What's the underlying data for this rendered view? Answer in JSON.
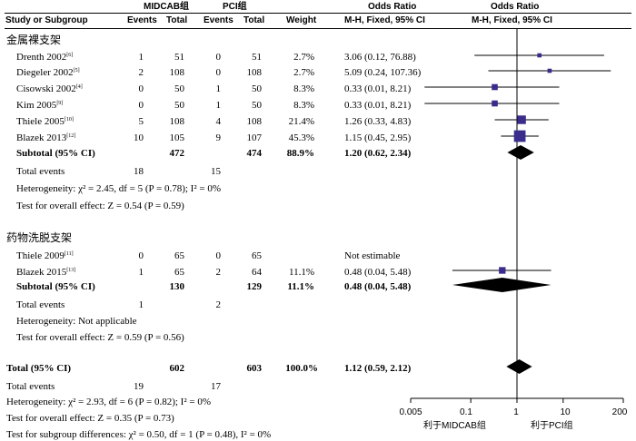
{
  "header": {
    "study": "Study or Subgroup",
    "group1": "MIDCAB组",
    "group2": "PCI组",
    "events": "Events",
    "total": "Total",
    "weight": "Weight",
    "or_title": "Odds Ratio",
    "or_method": "M-H, Fixed, 95% CI"
  },
  "groups": [
    {
      "title": "金属裸支架",
      "studies": [
        {
          "name": "Drenth 2002",
          "ref": "[6]",
          "e1": "1",
          "t1": "51",
          "e2": "0",
          "t2": "51",
          "weight": "2.7%",
          "ci": "3.06 (0.12, 76.88)"
        },
        {
          "name": "Diegeler 2002",
          "ref": "[5]",
          "e1": "2",
          "t1": "108",
          "e2": "0",
          "t2": "108",
          "weight": "2.7%",
          "ci": "5.09 (0.24, 107.36)"
        },
        {
          "name": "Cisowski 2002",
          "ref": "[4]",
          "e1": "0",
          "t1": "50",
          "e2": "1",
          "t2": "50",
          "weight": "8.3%",
          "ci": "0.33 (0.01, 8.21)"
        },
        {
          "name": "Kim 2005",
          "ref": "[9]",
          "e1": "0",
          "t1": "50",
          "e2": "1",
          "t2": "50",
          "weight": "8.3%",
          "ci": "0.33 (0.01, 8.21)"
        },
        {
          "name": "Thiele 2005",
          "ref": "[10]",
          "e1": "5",
          "t1": "108",
          "e2": "4",
          "t2": "108",
          "weight": "21.4%",
          "ci": "1.26 (0.33, 4.83)"
        },
        {
          "name": "Blazek 2013",
          "ref": "[12]",
          "e1": "10",
          "t1": "105",
          "e2": "9",
          "t2": "107",
          "weight": "45.3%",
          "ci": "1.15 (0.45, 2.95)"
        }
      ],
      "subtotal": {
        "label": "Subtotal (95% CI)",
        "t1": "472",
        "t2": "474",
        "weight": "88.9%",
        "ci": "1.20 (0.62, 2.34)"
      },
      "total_events": {
        "label": "Total events",
        "e1": "18",
        "e2": "15"
      },
      "heterogeneity": "Heterogeneity: χ² = 2.45, df = 5 (P = 0.78); I² = 0%",
      "overall": "Test for overall effect: Z = 0.54 (P = 0.59)"
    },
    {
      "title": "药物洗脱支架",
      "studies": [
        {
          "name": "Thiele 2009",
          "ref": "[11]",
          "e1": "0",
          "t1": "65",
          "e2": "0",
          "t2": "65",
          "weight": "",
          "ci": "Not estimable"
        },
        {
          "name": "Blazek 2015",
          "ref": "[13]",
          "e1": "1",
          "t1": "65",
          "e2": "2",
          "t2": "64",
          "weight": "11.1%",
          "ci": "0.48 (0.04, 5.48)"
        }
      ],
      "subtotal": {
        "label": "Subtotal (95% CI)",
        "t1": "130",
        "t2": "129",
        "weight": "11.1%",
        "ci": "0.48 (0.04, 5.48)"
      },
      "total_events": {
        "label": "Total events",
        "e1": "1",
        "e2": "2"
      },
      "heterogeneity": "Heterogeneity: Not applicable",
      "overall": "Test for overall effect: Z = 0.59 (P = 0.56)"
    }
  ],
  "total": {
    "label": "Total (95% CI)",
    "t1": "602",
    "t2": "603",
    "weight": "100.0%",
    "ci": "1.12 (0.59, 2.12)",
    "events_label": "Total events",
    "e1": "19",
    "e2": "17",
    "heterogeneity": "Heterogeneity: χ² = 2.93, df = 6 (P = 0.82); I² = 0%",
    "overall": "Test for overall effect: Z = 0.35 (P = 0.73)",
    "subgroup": "Test for subgroup differences: χ² = 0.50, df = 1 (P = 0.48), I² = 0%"
  },
  "axis": {
    "ticks": [
      "0.005",
      "0.1",
      "1",
      "10",
      "200"
    ],
    "favours_left": "利于MIDCAB组",
    "favours_right": "利于PCI组"
  },
  "colors": {
    "marker": "#3a2c8c",
    "diamond": "#000000",
    "ci_line": "#000000"
  },
  "chart_data": {
    "type": "forest",
    "scale": "log",
    "xlim": [
      0.005,
      200
    ],
    "reference_line": 1,
    "studies": [
      {
        "name": "Drenth 2002",
        "or": 3.06,
        "lo": 0.12,
        "hi": 76.88,
        "weight": 2.7
      },
      {
        "name": "Diegeler 2002",
        "or": 5.09,
        "lo": 0.24,
        "hi": 107.36,
        "weight": 2.7
      },
      {
        "name": "Cisowski 2002",
        "or": 0.33,
        "lo": 0.01,
        "hi": 8.21,
        "weight": 8.3
      },
      {
        "name": "Kim 2005",
        "or": 0.33,
        "lo": 0.01,
        "hi": 8.21,
        "weight": 8.3
      },
      {
        "name": "Thiele 2005",
        "or": 1.26,
        "lo": 0.33,
        "hi": 4.83,
        "weight": 21.4
      },
      {
        "name": "Blazek 2013",
        "or": 1.15,
        "lo": 0.45,
        "hi": 2.95,
        "weight": 45.3
      },
      {
        "name": "Blazek 2015",
        "or": 0.48,
        "lo": 0.04,
        "hi": 5.48,
        "weight": 11.1
      }
    ],
    "pooled": [
      {
        "name": "Subtotal 金属裸支架",
        "or": 1.2,
        "lo": 0.62,
        "hi": 2.34
      },
      {
        "name": "Subtotal 药物洗脱支架",
        "or": 0.48,
        "lo": 0.04,
        "hi": 5.48
      },
      {
        "name": "Total",
        "or": 1.12,
        "lo": 0.59,
        "hi": 2.12
      }
    ]
  }
}
